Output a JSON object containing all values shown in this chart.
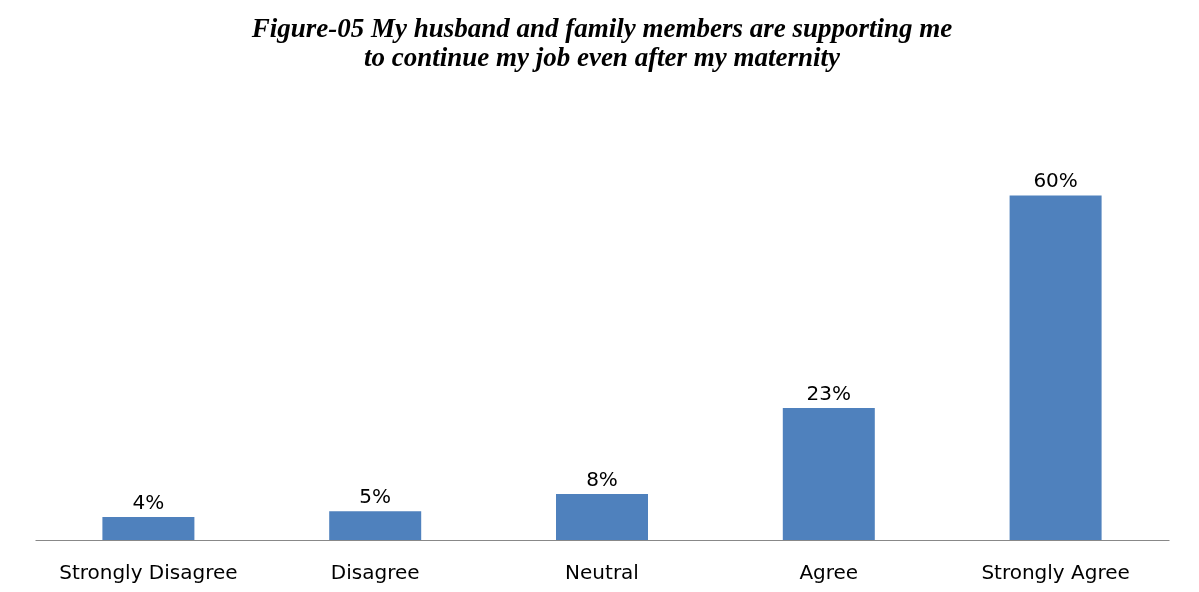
{
  "chart_data": {
    "type": "bar",
    "title": "Figure-05 My husband and family members are supporting me to continue my job even after my maternity",
    "categories": [
      "Strongly Disagree",
      "Disagree",
      "Neutral",
      "Agree",
      "Strongly Agree"
    ],
    "series": [
      {
        "color": "#4f81bd",
        "values": [
          4,
          5,
          8,
          23,
          60
        ],
        "value_labels": [
          "4%",
          "5%",
          "8%",
          "23%",
          "60%"
        ]
      }
    ],
    "grid": false
  }
}
